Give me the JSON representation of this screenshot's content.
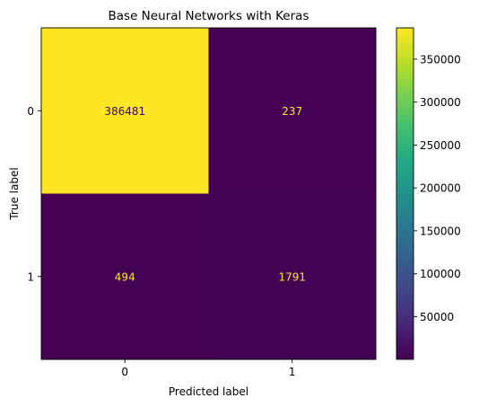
{
  "chart_data": {
    "type": "heatmap",
    "title": "Base Neural Networks with Keras",
    "xlabel": "Predicted label",
    "ylabel": "True label",
    "x_categories": [
      "0",
      "1"
    ],
    "y_categories": [
      "0",
      "1"
    ],
    "matrix": [
      [
        386481,
        237
      ],
      [
        494,
        1791
      ]
    ],
    "colorbar": {
      "ticks": [
        "50000",
        "100000",
        "150000",
        "200000",
        "250000",
        "300000",
        "350000"
      ],
      "tick_values": [
        50000,
        100000,
        150000,
        200000,
        250000,
        300000,
        350000
      ],
      "range": [
        237,
        386481
      ],
      "colormap": "viridis"
    },
    "colors": {
      "high": "#fde725",
      "low": "#440154",
      "text_on_high": "#440154",
      "text_on_low": "#fde725"
    }
  }
}
